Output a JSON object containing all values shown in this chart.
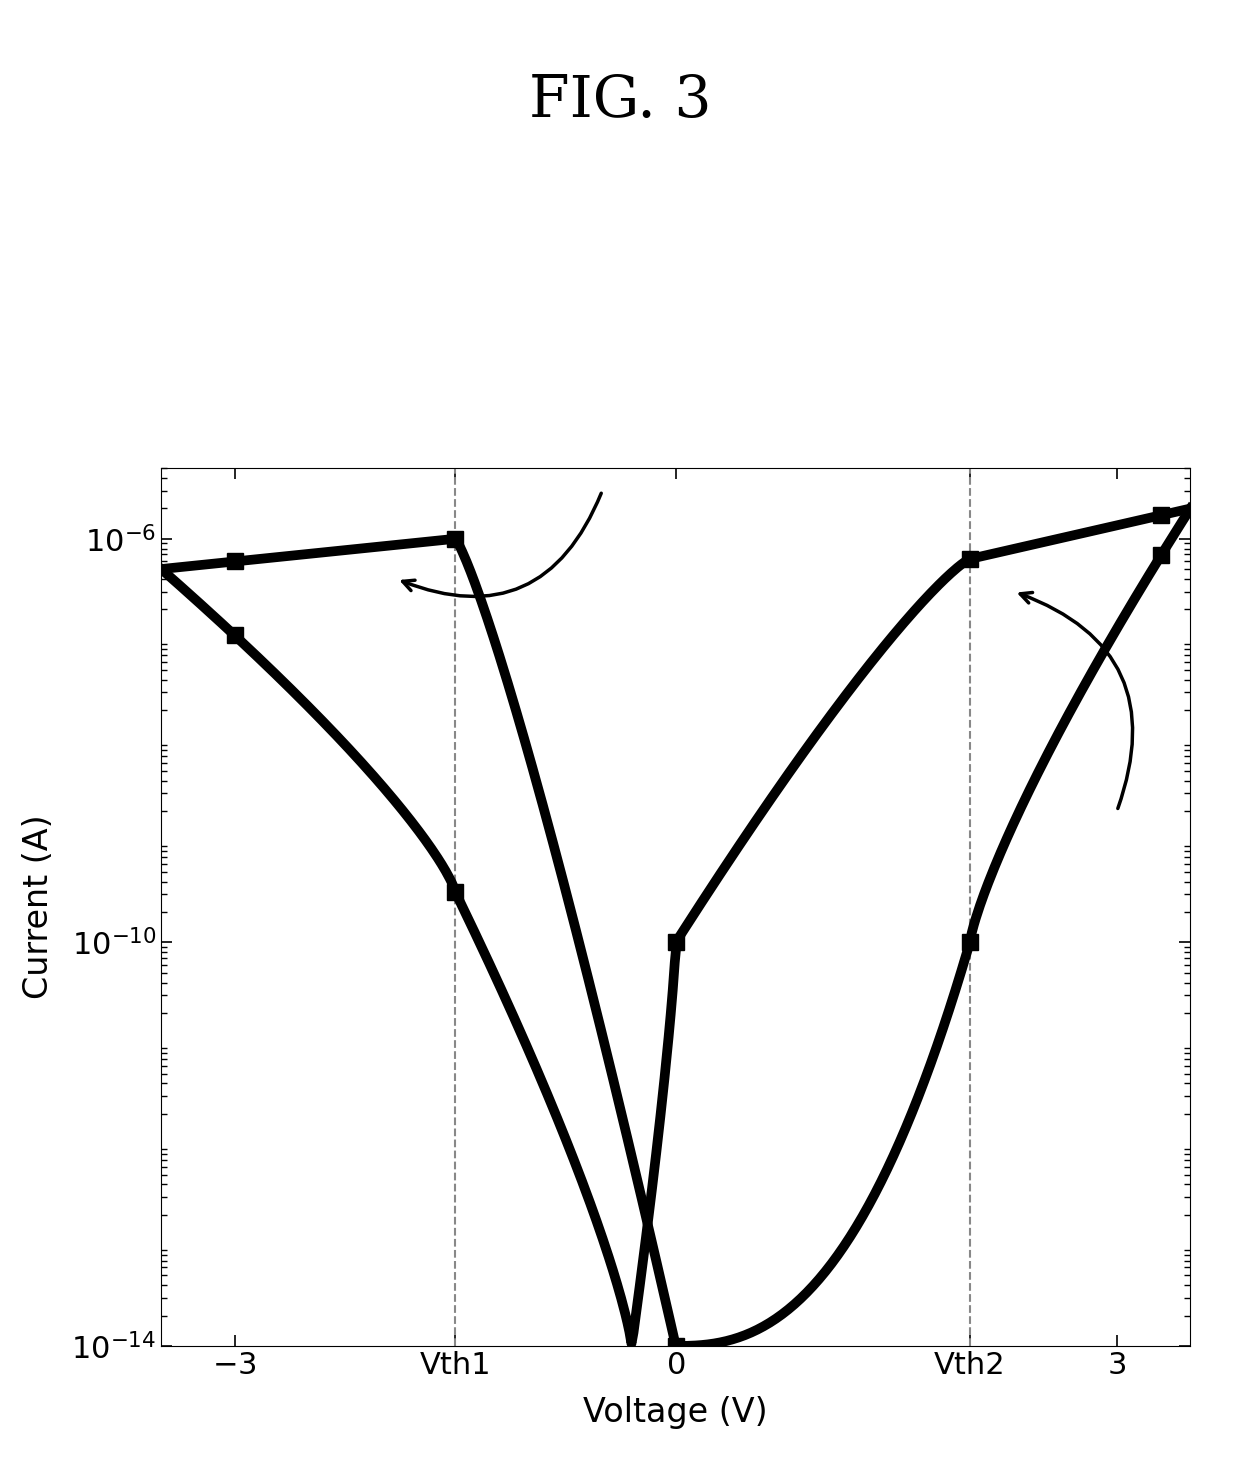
{
  "title": "FIG. 3",
  "xlabel": "Voltage (V)",
  "ylabel": "Current (A)",
  "xlim": [
    -3.5,
    3.5
  ],
  "vth1": -1.5,
  "vth2": 2.0,
  "background_color": "#ffffff",
  "line_color": "#000000",
  "line_width": 7,
  "marker_size": 12,
  "title_fontsize": 42,
  "label_fontsize": 24,
  "tick_fontsize": 22,
  "arrow_lw": 2.5
}
